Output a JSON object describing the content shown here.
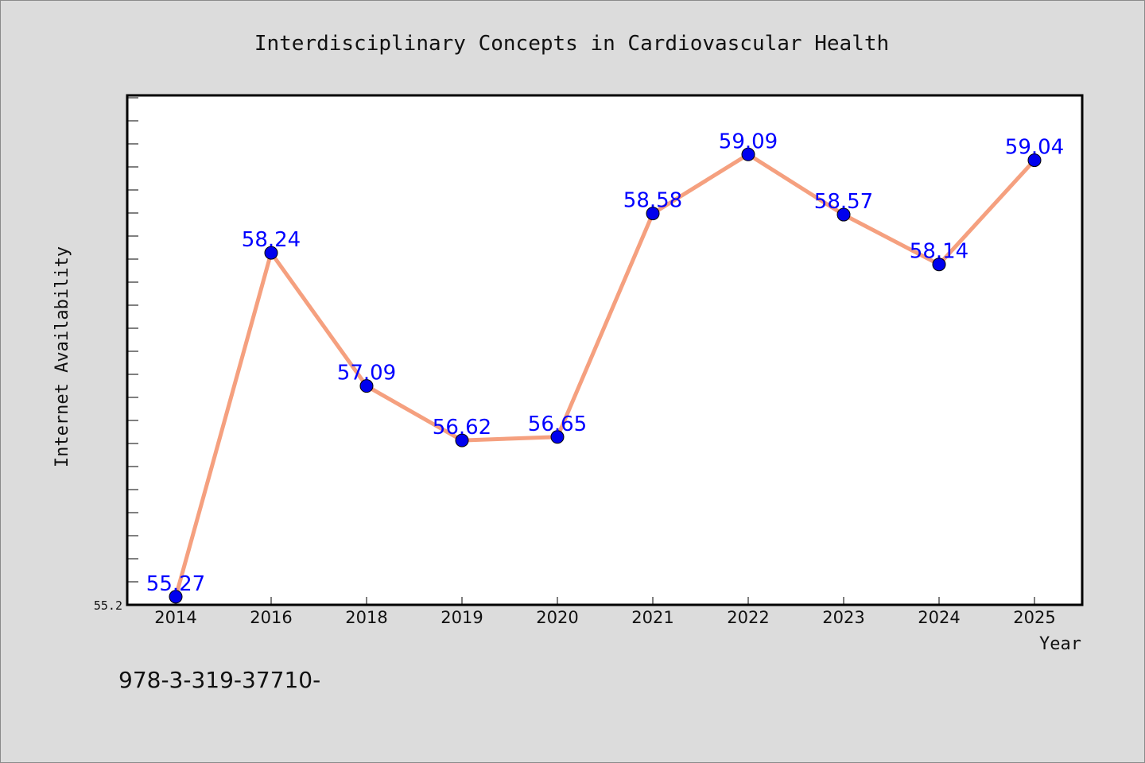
{
  "chart_data": {
    "type": "line",
    "title": "Interdisciplinary Concepts in Cardiovascular Health",
    "xlabel": "Year",
    "ylabel": "Internet Availability",
    "categories": [
      "2014",
      "2016",
      "2018",
      "2019",
      "2020",
      "2021",
      "2022",
      "2023",
      "2024",
      "2025"
    ],
    "series": [
      {
        "values": [
          55.27,
          58.24,
          57.09,
          56.62,
          56.65,
          58.58,
          59.09,
          58.57,
          58.14,
          59.04
        ]
      }
    ],
    "data_labels": [
      "55.27",
      "58.24",
      "57.09",
      "56.62",
      "56.65",
      "58.58",
      "59.09",
      "58.57",
      "58.14",
      "59.04"
    ],
    "ylim": [
      55.2,
      59.6
    ],
    "y_tick_labels": [
      "55.2"
    ],
    "grid": false,
    "legend": "none",
    "colors": {
      "line": "#f5a07f",
      "marker": "#0000ee",
      "data_label": "#0000ff",
      "background": "#dcdcdc",
      "plot_area": "#ffffff"
    }
  },
  "footer": {
    "text": "978-3-319-37710-"
  }
}
